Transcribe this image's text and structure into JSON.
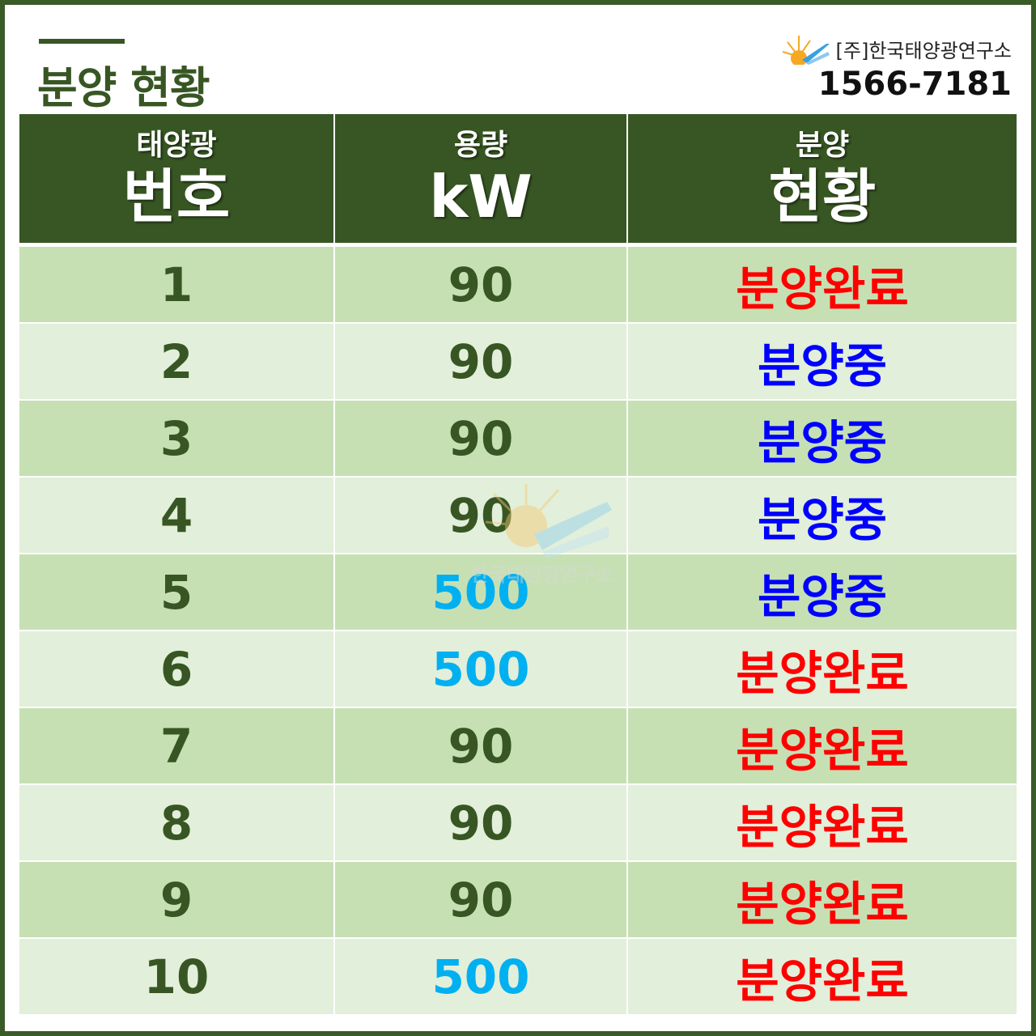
{
  "title": "분양 현황",
  "logo": {
    "company": "[주]한국태양광연구소",
    "phone": "1566-7181"
  },
  "watermark": "한국태양광연구소",
  "header": [
    {
      "small": "태양광",
      "big": "번호"
    },
    {
      "small": "용량",
      "big": "kW"
    },
    {
      "small": "분양",
      "big": "현황"
    }
  ],
  "colors": {
    "header_bg": "#375623",
    "row_odd": "#c6e0b4",
    "row_even": "#e2efda",
    "number": "#375623",
    "capacity_90": "#375623",
    "capacity_500": "#00b0f0",
    "sold_out": "#ff0000",
    "on_sale": "#0000ff"
  },
  "rows": [
    {
      "no": "1",
      "kw": "90",
      "status": "분양완료"
    },
    {
      "no": "2",
      "kw": "90",
      "status": "분양중"
    },
    {
      "no": "3",
      "kw": "90",
      "status": "분양중"
    },
    {
      "no": "4",
      "kw": "90",
      "status": "분양중"
    },
    {
      "no": "5",
      "kw": "500",
      "status": "분양중"
    },
    {
      "no": "6",
      "kw": "500",
      "status": "분양완료"
    },
    {
      "no": "7",
      "kw": "90",
      "status": "분양완료"
    },
    {
      "no": "8",
      "kw": "90",
      "status": "분양완료"
    },
    {
      "no": "9",
      "kw": "90",
      "status": "분양완료"
    },
    {
      "no": "10",
      "kw": "500",
      "status": "분양완료"
    }
  ]
}
